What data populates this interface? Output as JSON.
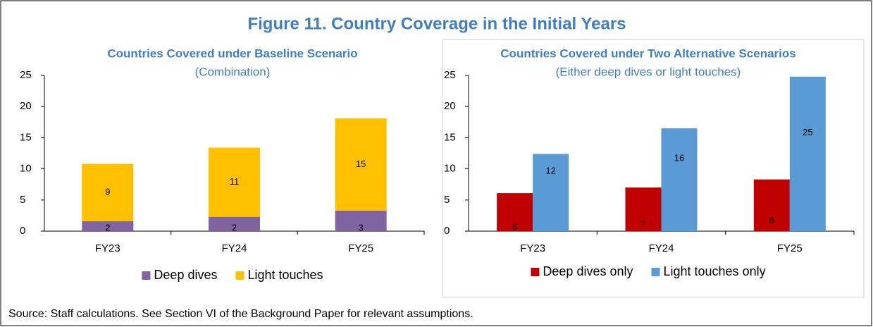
{
  "figure_title": "Figure 11. Country Coverage in the Initial Years",
  "source": "Source: Staff calculations. See Section VI of the Background Paper for relevant assumptions.",
  "chart_data": [
    {
      "type": "stacked_bar",
      "title": "Countries Covered under Baseline Scenario",
      "subtitle": "(Combination)",
      "categories": [
        "FY23",
        "FY24",
        "FY25"
      ],
      "series": [
        {
          "name": "Deep dives",
          "color": "#8064a2",
          "values": [
            1.6,
            2.3,
            3.3
          ],
          "value_labels": [
            "2",
            "2",
            "3"
          ]
        },
        {
          "name": "Light touches",
          "color": "#ffc000",
          "values": [
            9.2,
            11.1,
            14.8
          ],
          "value_labels": [
            "9",
            "11",
            "15"
          ]
        }
      ],
      "ylim": [
        0,
        25
      ],
      "yticks": [
        0,
        5,
        10,
        15,
        20,
        25
      ],
      "legend": "bottom"
    },
    {
      "type": "bar",
      "title": "Countries Covered under Two Alternative Scenarios",
      "subtitle": "(Either deep dives or light touches)",
      "categories": [
        "FY23",
        "FY24",
        "FY25"
      ],
      "series": [
        {
          "name": "Deep dives only",
          "color": "#c00000",
          "values": [
            6.1,
            7.0,
            8.3
          ],
          "value_labels": [
            "6",
            "7",
            "8"
          ]
        },
        {
          "name": "Light touches only",
          "color": "#5b9bd5",
          "values": [
            12.4,
            16.5,
            24.8
          ],
          "value_labels": [
            "12",
            "16",
            "25"
          ]
        }
      ],
      "ylim": [
        0,
        25
      ],
      "yticks": [
        0,
        5,
        10,
        15,
        20,
        25
      ],
      "legend": "bottom"
    }
  ]
}
